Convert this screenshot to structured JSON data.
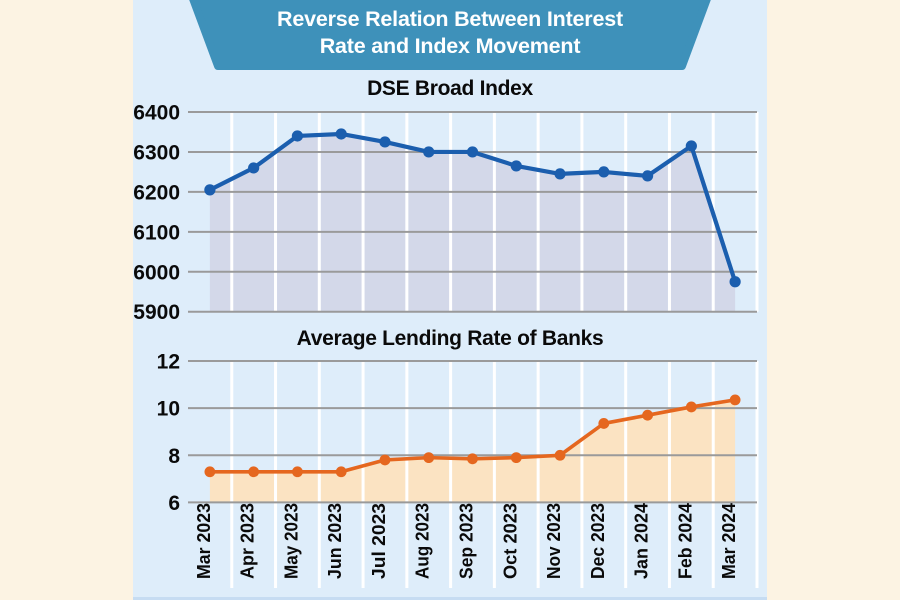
{
  "banner": {
    "line1": "Reverse Relation Between Interest",
    "line2": "Rate and Index Movement"
  },
  "chart_data": [
    {
      "name": "dse-broad-index",
      "type": "area",
      "title": "DSE Broad Index",
      "categories": [
        "Mar 2023",
        "Apr 2023",
        "May 2023",
        "Jun 2023",
        "Jul 2023",
        "Aug 2023",
        "Sep 2023",
        "Oct 2023",
        "Nov 2023",
        "Dec 2023",
        "Jan 2024",
        "Feb 2024",
        "Mar 2024"
      ],
      "values": [
        6205,
        6260,
        6340,
        6345,
        6325,
        6300,
        6300,
        6265,
        6245,
        6250,
        6240,
        6315,
        5975
      ],
      "ylim": [
        5900,
        6400
      ],
      "yticks": [
        6400,
        6300,
        6200,
        6100,
        6000,
        5900
      ],
      "xlabel": "",
      "ylabel": "",
      "grid": true,
      "legend": "none",
      "show_x_labels": false,
      "line_color": "#1B5EAE",
      "fill_color": "#D3D8E9"
    },
    {
      "name": "average-lending-rate",
      "type": "area",
      "title": "Average Lending Rate of Banks",
      "categories": [
        "Mar 2023",
        "Apr 2023",
        "May 2023",
        "Jun 2023",
        "Jul 2023",
        "Aug 2023",
        "Sep 2023",
        "Oct 2023",
        "Nov 2023",
        "Dec 2023",
        "Jan 2024",
        "Feb 2024",
        "Mar 2024"
      ],
      "values": [
        7.3,
        7.3,
        7.3,
        7.3,
        7.8,
        7.9,
        7.85,
        7.9,
        8.0,
        9.35,
        9.7,
        10.05,
        10.35
      ],
      "ylim": [
        6,
        12
      ],
      "yticks": [
        12,
        10,
        8,
        6
      ],
      "xlabel": "",
      "ylabel": "",
      "grid": true,
      "legend": "none",
      "show_x_labels": true,
      "line_color": "#E5671F",
      "fill_color": "#FBE3C2"
    }
  ],
  "colors": {
    "page_background": "#FCF3E3",
    "panel_background": "#DEEDFA",
    "banner_background": "#3E91BA",
    "banner_text": "#FFFFFF",
    "gridline": "#9A9A9A",
    "column_separator": "#FFFFFF",
    "axis_text": "#0A0A0A"
  }
}
